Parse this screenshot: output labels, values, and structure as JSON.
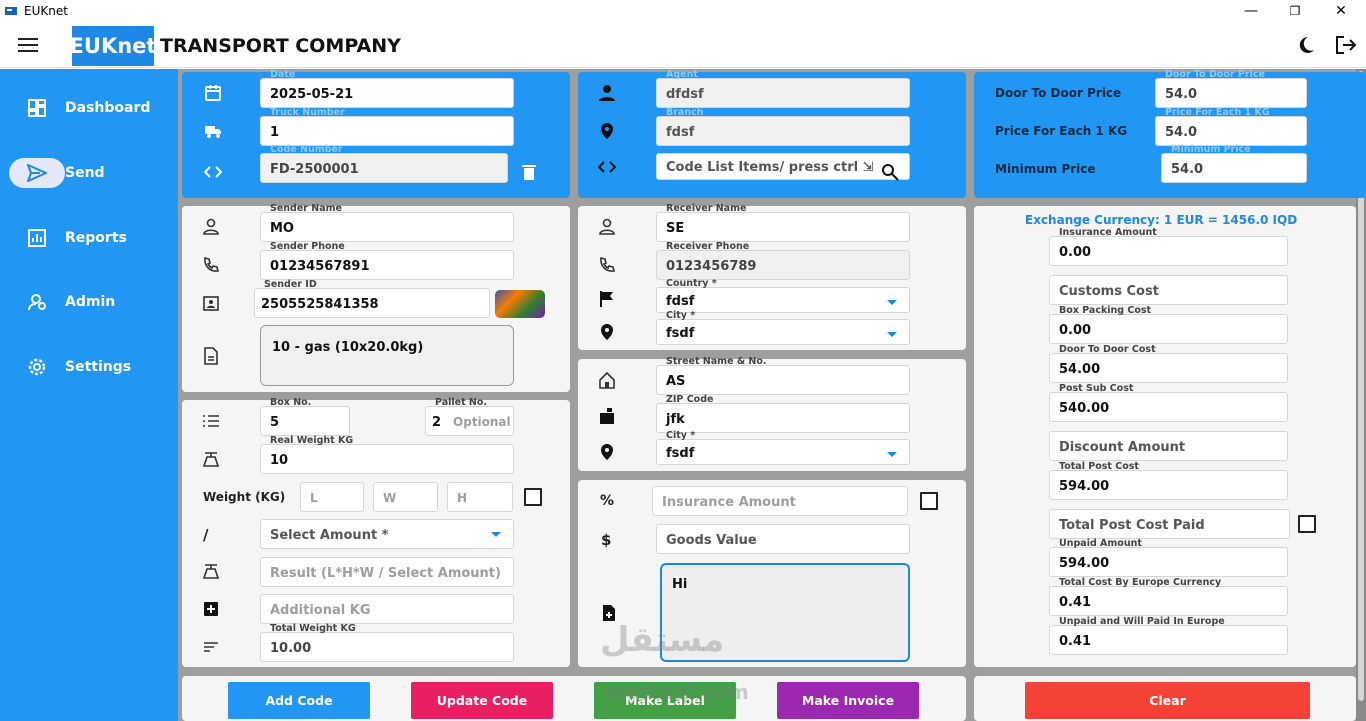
{
  "window": {
    "title": "EUKnet",
    "minimize": "—",
    "maximize": "❐",
    "close": "✕"
  },
  "header": {
    "brand": "EUKnet",
    "company": "TRANSPORT COMPANY"
  },
  "sidebar": {
    "items": [
      {
        "label": "Dashboard",
        "icon": "dashboard-icon"
      },
      {
        "label": "Send",
        "icon": "send-icon",
        "active": true
      },
      {
        "label": "Reports",
        "icon": "reports-icon"
      },
      {
        "label": "Admin",
        "icon": "admin-icon"
      },
      {
        "label": "Settings",
        "icon": "settings-icon"
      }
    ]
  },
  "shipment": {
    "date_label": "Date",
    "date": "2025-05-21",
    "truck_label": "Truck Number",
    "truck": "1",
    "code_label": "Code Number",
    "code": "FD-2500001"
  },
  "agent": {
    "agent_label": "Agent",
    "agent": "dfdsf",
    "branch_label": "Branch",
    "branch": "fdsf",
    "code_list_placeholder": "Code List Items/ press ctrl ⇲"
  },
  "pricing": {
    "door_label": "Door To Door Price",
    "door_field_label": "Door To Door Price",
    "door": "54.0",
    "kg_label": "Price For Each 1 KG",
    "kg_field_label": "Price For Each 1 KG",
    "kg": "54.0",
    "min_label": "Minimum Price",
    "min_field_label": "Minimum Price",
    "min": "54.0"
  },
  "sender": {
    "name_label": "Sender Name",
    "name": "MO",
    "phone_label": "Sender Phone",
    "phone": "01234567891",
    "id_label": "Sender ID",
    "id": "2505525841358",
    "goods": "10 - gas (10x20.0kg)"
  },
  "receiver": {
    "name_label": "Receiver Name",
    "name": "SE",
    "phone_label": "Receiver Phone",
    "phone": "0123456789",
    "country_label": "Country *",
    "country": "fdsf",
    "city_label": "City *",
    "city": "fsdf"
  },
  "address": {
    "street_label": "Street Name & No.",
    "street": "AS",
    "zip_label": "ZIP Code",
    "zip": "jfk",
    "city_label": "City *",
    "city": "fsdf"
  },
  "box": {
    "box_label": "Box No.",
    "box": "5",
    "pallet_label": "Pallet No.",
    "pallet": "2",
    "pallet_placeholder": "Optional",
    "real_weight_label": "Real Weight KG",
    "real_weight": "10",
    "weight_label": "Weight (KG)",
    "l_ph": "L",
    "w_ph": "W",
    "h_ph": "H",
    "divider_symbol": "/",
    "select_amount": "Select Amount *",
    "result_ph": "Result (L*H*W / Select Amount)",
    "additional_ph": "Additional KG",
    "total_weight_label": "Total Weight KG",
    "total_weight": "10.00"
  },
  "extras": {
    "insurance_ph": "Insurance Amount",
    "goods_value_ph": "Goods Value",
    "notes": "Hi",
    "percent_symbol": "%",
    "dollar_symbol": "$"
  },
  "costs": {
    "exchange": "Exchange Currency: 1 EUR = 1456.0 IQD",
    "insurance_label": "Insurance Amount",
    "insurance": "0.00",
    "customs_ph": "Customs Cost",
    "box_packing_label": "Box Packing Cost",
    "box_packing": "0.00",
    "door_cost_label": "Door To Door Cost",
    "door_cost": "54.00",
    "post_sub_label": "Post Sub Cost",
    "post_sub": "540.00",
    "discount_ph": "Discount Amount",
    "total_post_label": "Total Post Cost",
    "total_post": "594.00",
    "paid_ph": "Total Post Cost Paid",
    "unpaid_label": "Unpaid Amount",
    "unpaid": "594.00",
    "europe_label": "Total Cost By Europe Currency",
    "europe": "0.41",
    "unpaid_europe_label": "Unpaid and Will Paid In Europe",
    "unpaid_europe": "0.41"
  },
  "actions": {
    "add": "Add Code",
    "update": "Update Code",
    "label": "Make Label",
    "invoice": "Make Invoice",
    "clear": "Clear"
  },
  "watermark": {
    "arabic": "مستقل",
    "latin": "mostaql.com"
  },
  "colors": {
    "primary": "#2196f3",
    "add": "#2196f3",
    "update": "#e91e63",
    "label": "#43a047",
    "invoice": "#9c27b0",
    "clear": "#f44336"
  }
}
